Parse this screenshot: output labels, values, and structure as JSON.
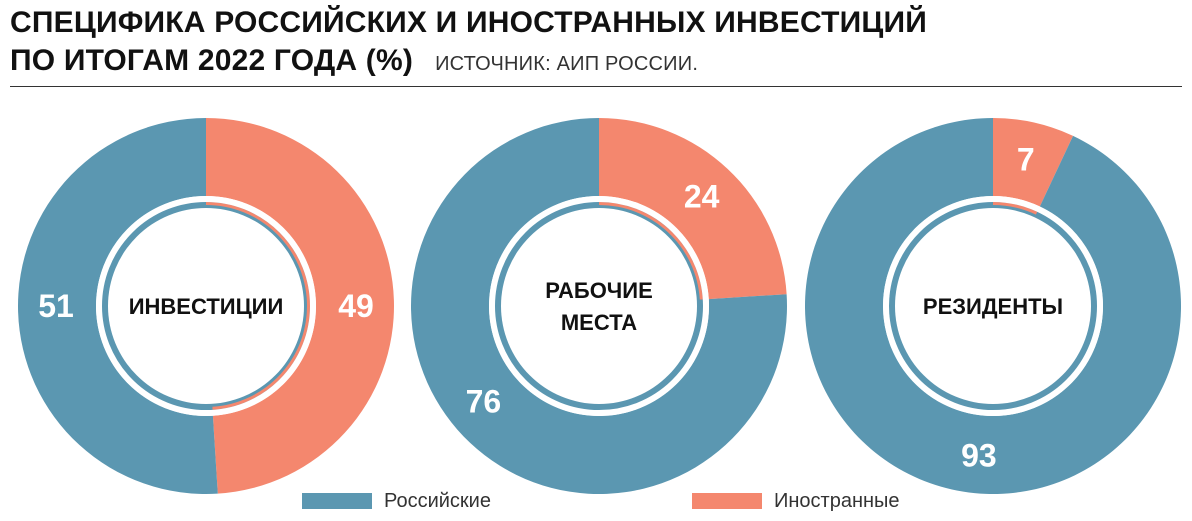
{
  "header": {
    "title_line1": "СПЕЦИФИКА РОССИЙСКИХ И ИНОСТРАННЫХ ИНВЕСТИЦИЙ",
    "title_line2": "ПО ИТОГАМ 2022 ГОДА (%)",
    "source": "ИСТОЧНИК: АИП РОССИИ."
  },
  "colors": {
    "russian": "#5b97b1",
    "foreign": "#f4876e"
  },
  "legend": [
    {
      "key": "russian",
      "label": "Российские"
    },
    {
      "key": "foreign",
      "label": "Иностранные"
    }
  ],
  "chart_data": [
    {
      "type": "pie",
      "center_label": [
        "ИНВЕСТИЦИИ"
      ],
      "series": [
        {
          "name": "Российские",
          "value": 51
        },
        {
          "name": "Иностранные",
          "value": 49
        }
      ]
    },
    {
      "type": "pie",
      "center_label": [
        "РАБОЧИЕ",
        "МЕСТА"
      ],
      "series": [
        {
          "name": "Российские",
          "value": 76
        },
        {
          "name": "Иностранные",
          "value": 24
        }
      ]
    },
    {
      "type": "pie",
      "center_label": [
        "РЕЗИДЕНТЫ"
      ],
      "series": [
        {
          "name": "Российские",
          "value": 93
        },
        {
          "name": "Иностранные",
          "value": 7
        }
      ]
    }
  ]
}
